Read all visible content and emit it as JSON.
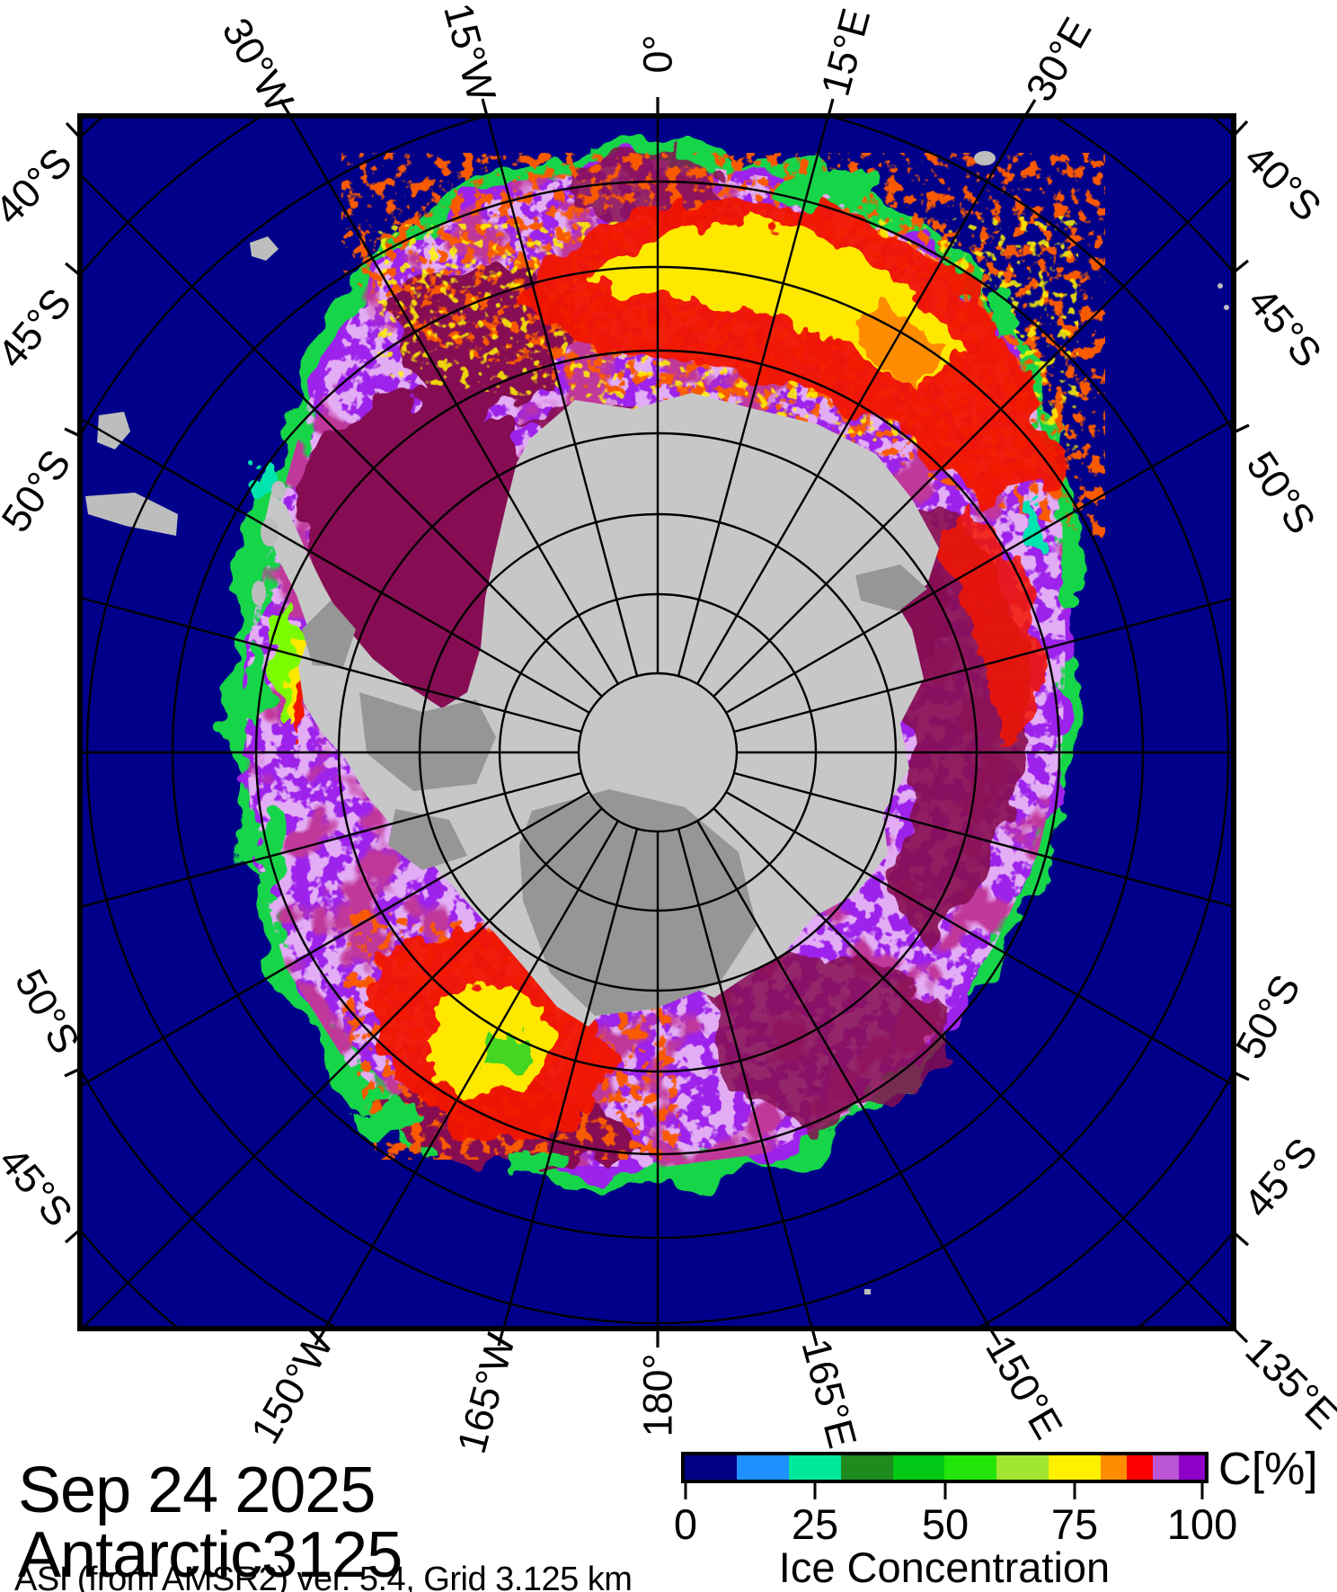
{
  "figure": {
    "date": "Sep 24 2025",
    "region_id": "Antarctic3125",
    "source_line": "ASI (from AMSR2) ver. 5.4,  Grid 3.125 km"
  },
  "colorbar": {
    "unit_label": "C[%]",
    "caption": "Ice Concentration",
    "tick_labels": [
      "0",
      "25",
      "50",
      "75",
      "100"
    ],
    "segments": [
      {
        "range_pct": "0-10",
        "color": "#000084",
        "width_pct": 10
      },
      {
        "range_pct": "10-20",
        "color": "#1E90FF",
        "width_pct": 10
      },
      {
        "range_pct": "20-30",
        "color": "#00E89C",
        "width_pct": 10
      },
      {
        "range_pct": "30-40",
        "color": "#1F8B1F",
        "width_pct": 10
      },
      {
        "range_pct": "40-50",
        "color": "#00C814",
        "width_pct": 10
      },
      {
        "range_pct": "50-60",
        "color": "#22E60A",
        "width_pct": 10
      },
      {
        "range_pct": "60-70",
        "color": "#A0E632",
        "width_pct": 10
      },
      {
        "range_pct": "70-80",
        "color": "#FFF000",
        "width_pct": 10
      },
      {
        "range_pct": "80-85",
        "color": "#FF8C00",
        "width_pct": 5
      },
      {
        "range_pct": "85-90",
        "color": "#FF0000",
        "width_pct": 5
      },
      {
        "range_pct": "90-95",
        "color": "#BA55D3",
        "width_pct": 5
      },
      {
        "range_pct": "95-100",
        "color": "#8E00C8",
        "width_pct": 5
      }
    ]
  },
  "map": {
    "axis_labels": {
      "top": [
        {
          "text": "30°W"
        },
        {
          "text": "15°W"
        },
        {
          "text": "0°"
        },
        {
          "text": "15°E"
        },
        {
          "text": "30°E"
        }
      ],
      "bottom": [
        {
          "text": "150°W"
        },
        {
          "text": "165°W"
        },
        {
          "text": "180°"
        },
        {
          "text": "165°E"
        },
        {
          "text": "150°E"
        },
        {
          "text": "135°E"
        }
      ],
      "left": [
        {
          "text": "40°S"
        },
        {
          "text": "45°S"
        },
        {
          "text": "50°S"
        },
        {
          "text": "50°S"
        },
        {
          "text": "45°S"
        }
      ],
      "right": [
        {
          "text": "40°S"
        },
        {
          "text": "45°S"
        },
        {
          "text": "50°S"
        },
        {
          "text": "50°S"
        },
        {
          "text": "45°S"
        }
      ]
    },
    "graticule": {
      "parallels_deg_s": [
        40,
        45,
        50,
        55,
        60,
        65,
        70,
        75,
        80,
        85
      ],
      "meridian_step_deg": 15
    },
    "colors": {
      "ocean": "#00008B",
      "land": "#C7C7C7",
      "ice_shelf": "#969696",
      "ice_main": "#9D23EB",
      "ice_light_speckle": "#C46BE8",
      "ice_max_dark": "#860B52",
      "hotspot_red": "#F21500",
      "hotspot_yellow": "#FFE800",
      "edge_green": "#19D54A"
    }
  }
}
